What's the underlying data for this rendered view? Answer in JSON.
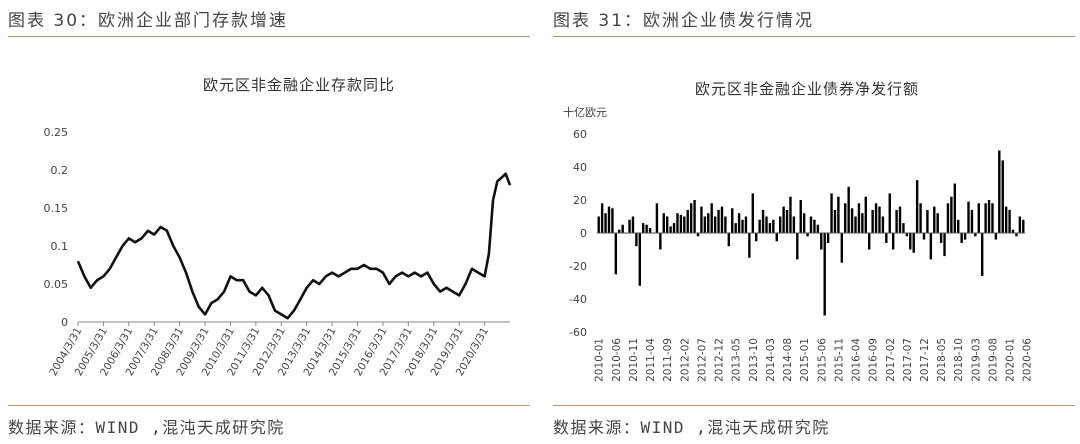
{
  "left": {
    "figure_title": "图表 30：欧洲企业部门存款增速",
    "source": "数据来源：WIND ,混沌天成研究院",
    "chart_data": {
      "type": "line",
      "title": "欧元区非金融企业存款同比",
      "xlabel": "",
      "ylabel": "",
      "ylim": [
        0,
        0.25
      ],
      "yticks": [
        "0",
        "0.05",
        "0.1",
        "0.15",
        "0.2",
        "0.25"
      ],
      "xticks": [
        "2004/3/31",
        "2005/3/31",
        "2006/3/31",
        "2007/3/31",
        "2008/3/31",
        "2009/3/31",
        "2010/3/31",
        "2011/3/31",
        "2012/3/31",
        "2013/3/31",
        "2014/3/31",
        "2015/3/31",
        "2016/3/31",
        "2017/3/31",
        "2018/3/31",
        "2019/3/31",
        "2020/3/31"
      ],
      "grid": false,
      "color": "#111111",
      "series": [
        {
          "x": [
            2004.0,
            2004.25,
            2004.5,
            2004.75,
            2005.0,
            2005.25,
            2005.5,
            2005.75,
            2006.0,
            2006.25,
            2006.5,
            2006.75,
            2007.0,
            2007.25,
            2007.5,
            2007.75,
            2008.0,
            2008.25,
            2008.5,
            2008.75,
            2009.0,
            2009.25,
            2009.5,
            2009.75,
            2010.0,
            2010.25,
            2010.5,
            2010.75,
            2011.0,
            2011.25,
            2011.5,
            2011.75,
            2012.0,
            2012.25,
            2012.5,
            2012.75,
            2013.0,
            2013.25,
            2013.5,
            2013.75,
            2014.0,
            2014.25,
            2014.5,
            2014.75,
            2015.0,
            2015.25,
            2015.5,
            2015.75,
            2016.0,
            2016.25,
            2016.5,
            2016.75,
            2017.0,
            2017.25,
            2017.5,
            2017.75,
            2018.0,
            2018.25,
            2018.5,
            2018.75,
            2019.0,
            2019.25,
            2019.5,
            2019.75,
            2020.0,
            2020.17,
            2020.33,
            2020.5,
            2020.67,
            2020.83,
            2021.0
          ],
          "values": [
            0.08,
            0.06,
            0.045,
            0.055,
            0.06,
            0.07,
            0.085,
            0.1,
            0.11,
            0.105,
            0.11,
            0.12,
            0.115,
            0.125,
            0.12,
            0.1,
            0.085,
            0.065,
            0.04,
            0.02,
            0.01,
            0.025,
            0.03,
            0.04,
            0.06,
            0.055,
            0.055,
            0.04,
            0.035,
            0.045,
            0.035,
            0.015,
            0.01,
            0.005,
            0.015,
            0.03,
            0.045,
            0.055,
            0.05,
            0.06,
            0.065,
            0.06,
            0.065,
            0.07,
            0.07,
            0.075,
            0.07,
            0.07,
            0.065,
            0.05,
            0.06,
            0.065,
            0.06,
            0.065,
            0.06,
            0.065,
            0.05,
            0.04,
            0.045,
            0.04,
            0.035,
            0.05,
            0.07,
            0.065,
            0.06,
            0.09,
            0.16,
            0.185,
            0.19,
            0.195,
            0.18
          ]
        }
      ]
    }
  },
  "right": {
    "figure_title": "图表 31：欧洲企业债发行情况",
    "source": "数据来源：WIND ,混沌天成研究院",
    "chart_data": {
      "type": "bar",
      "title": "欧元区非金融企业债券净发行额",
      "unit_label": "十亿欧元",
      "xlabel": "",
      "ylabel": "",
      "ylim": [
        -60,
        60
      ],
      "yticks": [
        "-60",
        "-40",
        "-20",
        "0",
        "20",
        "40",
        "60"
      ],
      "color": "#000000",
      "tick_labels": [
        "2010-01",
        "2010-06",
        "2010-11",
        "2011-04",
        "2011-09",
        "2012-02",
        "2012-07",
        "2012-12",
        "2013-05",
        "2013-10",
        "2014-03",
        "2014-08",
        "2015-01",
        "2015-06",
        "2015-11",
        "2016-04",
        "2016-09",
        "2017-02",
        "2017-07",
        "2017-12",
        "2018-05",
        "2018-10",
        "2019-03",
        "2019-08",
        "2020-01",
        "2020-06"
      ],
      "start_month": "2010-01",
      "values": [
        10,
        18,
        12,
        16,
        15,
        -25,
        2,
        5,
        0,
        8,
        10,
        -8,
        -32,
        6,
        5,
        3,
        0,
        18,
        -10,
        12,
        10,
        4,
        6,
        12,
        11,
        10,
        14,
        18,
        20,
        -2,
        16,
        10,
        12,
        18,
        10,
        14,
        16,
        10,
        -8,
        15,
        6,
        12,
        8,
        10,
        -15,
        24,
        -5,
        8,
        14,
        10,
        6,
        8,
        -5,
        10,
        16,
        14,
        22,
        10,
        -16,
        20,
        12,
        -2,
        10,
        8,
        5,
        -10,
        -50,
        -6,
        24,
        14,
        22,
        -18,
        18,
        28,
        15,
        10,
        18,
        12,
        22,
        -10,
        14,
        18,
        16,
        10,
        -6,
        24,
        -10,
        14,
        16,
        6,
        -2,
        -10,
        -12,
        32,
        18,
        -4,
        14,
        -16,
        16,
        12,
        -6,
        -14,
        18,
        22,
        30,
        8,
        -6,
        -4,
        19,
        14,
        -2,
        18,
        -26,
        18,
        20,
        18,
        -4,
        50,
        44,
        16,
        14,
        2,
        -2,
        10,
        8
      ],
      "series": []
    }
  }
}
